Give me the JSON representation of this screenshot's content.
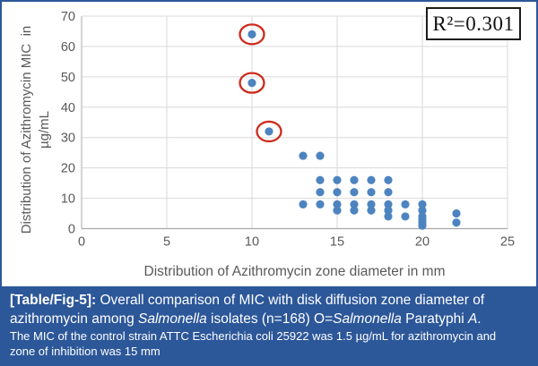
{
  "figure": {
    "r_squared_label": "R²=0.301",
    "y_axis_title_line1": "Distribution of Azithromycin MIC  in",
    "y_axis_title_line2": "µg/mL",
    "x_axis_title": "Distribution of Azithromycin zone diameter in mm"
  },
  "caption": {
    "tag": "[Table/Fig-5]:",
    "line1_rest": " Overall comparison of MIC with disk diffusion zone diameter of",
    "line2_parts": {
      "p0": "azithromycin among ",
      "p1": "Salmonella",
      "p2": " isolates (n=168) O=",
      "p3": "Salmonella",
      "p4": " Paratyphi ",
      "p5": "A",
      "p6": "."
    },
    "note_line1": "The MIC of the control strain ATTC Escherichia coli 25922 was 1.5 µg/mL for azithromycin and",
    "note_line2": "zone of inhibition was 15 mm"
  },
  "colors": {
    "point_fill": "#4d84c0",
    "outlier_ring": "#cd2a1b",
    "gridline": "#d9d9d9",
    "axis_line": "#a9a9a9",
    "tick_text": "#595959",
    "caption_bg": "#2c5799",
    "frame_border": "#2c5799",
    "annotation_border": "#1c1c1c"
  },
  "chart_data": {
    "type": "scatter",
    "title": "",
    "xlabel": "Distribution of Azithromycin zone diameter in mm",
    "ylabel": "Distribution of Azithromycin MIC in µg/mL",
    "xlim": [
      0,
      25
    ],
    "ylim": [
      0,
      70
    ],
    "x_ticks": [
      0,
      5,
      10,
      15,
      20,
      25
    ],
    "y_ticks": [
      0,
      10,
      20,
      30,
      40,
      50,
      60,
      70
    ],
    "grid": true,
    "legend": "none",
    "annotation": "R²=0.301",
    "circled_meaning": "O = Salmonella Paratyphi A",
    "points": [
      {
        "x": 10,
        "y": 64,
        "circled": true
      },
      {
        "x": 10,
        "y": 48,
        "circled": true
      },
      {
        "x": 11,
        "y": 32,
        "circled": true
      },
      {
        "x": 13,
        "y": 24,
        "circled": false
      },
      {
        "x": 14,
        "y": 24,
        "circled": false
      },
      {
        "x": 14,
        "y": 16,
        "circled": false
      },
      {
        "x": 15,
        "y": 16,
        "circled": false
      },
      {
        "x": 16,
        "y": 16,
        "circled": false
      },
      {
        "x": 17,
        "y": 16,
        "circled": false
      },
      {
        "x": 18,
        "y": 16,
        "circled": false
      },
      {
        "x": 14,
        "y": 12,
        "circled": false
      },
      {
        "x": 15,
        "y": 12,
        "circled": false
      },
      {
        "x": 16,
        "y": 12,
        "circled": false
      },
      {
        "x": 17,
        "y": 12,
        "circled": false
      },
      {
        "x": 18,
        "y": 12,
        "circled": false
      },
      {
        "x": 13,
        "y": 8,
        "circled": false
      },
      {
        "x": 14,
        "y": 8,
        "circled": false
      },
      {
        "x": 15,
        "y": 8,
        "circled": false
      },
      {
        "x": 16,
        "y": 8,
        "circled": false
      },
      {
        "x": 17,
        "y": 8,
        "circled": false
      },
      {
        "x": 18,
        "y": 8,
        "circled": false
      },
      {
        "x": 19,
        "y": 8,
        "circled": false
      },
      {
        "x": 20,
        "y": 8,
        "circled": false
      },
      {
        "x": 15,
        "y": 6,
        "circled": false
      },
      {
        "x": 16,
        "y": 6,
        "circled": false
      },
      {
        "x": 17,
        "y": 6,
        "circled": false
      },
      {
        "x": 18,
        "y": 6,
        "circled": false
      },
      {
        "x": 20,
        "y": 6,
        "circled": false
      },
      {
        "x": 18,
        "y": 4,
        "circled": false
      },
      {
        "x": 19,
        "y": 4,
        "circled": false
      },
      {
        "x": 20,
        "y": 4,
        "circled": false
      },
      {
        "x": 20,
        "y": 3,
        "circled": false
      },
      {
        "x": 20,
        "y": 2,
        "circled": false
      },
      {
        "x": 20,
        "y": 1,
        "circled": false
      },
      {
        "x": 22,
        "y": 5,
        "circled": false
      },
      {
        "x": 22,
        "y": 2,
        "circled": false
      }
    ]
  }
}
